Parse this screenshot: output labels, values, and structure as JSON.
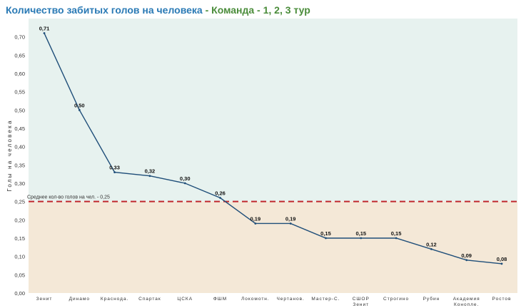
{
  "title": {
    "main": "Количество забитых голов на человека",
    "separator": " - ",
    "sub": "Команда - 1, 2, 3 тур"
  },
  "colors": {
    "title_main": "#2a7ab5",
    "title_sub": "#4a8c3a",
    "above_avg_band": "#e7f2ef",
    "below_avg_band": "#f4e8d7",
    "line": "#1f4e79",
    "average_line": "#c0272d"
  },
  "chart_data": {
    "type": "line",
    "title": "Количество забитых голов на человека - Команда - 1, 2, 3 тур",
    "ylabel": "Голы на человека",
    "xlabel": "",
    "ylim": [
      0,
      0.75
    ],
    "yticks": [
      "0,00",
      "0,05",
      "0,10",
      "0,15",
      "0,20",
      "0,25",
      "0,30",
      "0,35",
      "0,40",
      "0,45",
      "0,50",
      "0,55",
      "0,60",
      "0,65",
      "0,70"
    ],
    "categories": [
      [
        "Зенит"
      ],
      [
        "Динамо"
      ],
      [
        "Краснода."
      ],
      [
        "Спартак"
      ],
      [
        "ЦСКА"
      ],
      [
        "ФШМ"
      ],
      [
        "Локомотн."
      ],
      [
        "Чертанов."
      ],
      [
        "Мастер-С."
      ],
      [
        "СШОР",
        "Зенит"
      ],
      [
        "Строгино"
      ],
      [
        "Рубин"
      ],
      [
        "Академия",
        "Коноплe."
      ],
      [
        "Ростов"
      ]
    ],
    "values": [
      0.71,
      0.5,
      0.33,
      0.32,
      0.3,
      0.26,
      0.19,
      0.19,
      0.15,
      0.15,
      0.15,
      0.12,
      0.09,
      0.08
    ],
    "data_labels": [
      "0,71",
      "0,50",
      "0,33",
      "0,32",
      "0,30",
      "0,26",
      "0,19",
      "0,19",
      "0,15",
      "0,15",
      "0,15",
      "0,12",
      "0,09",
      "0,08"
    ],
    "reference_line": {
      "value": 0.25,
      "label": "Среднее кол-во голов на чел. - 0,25"
    },
    "grid": false,
    "legend": "none"
  }
}
